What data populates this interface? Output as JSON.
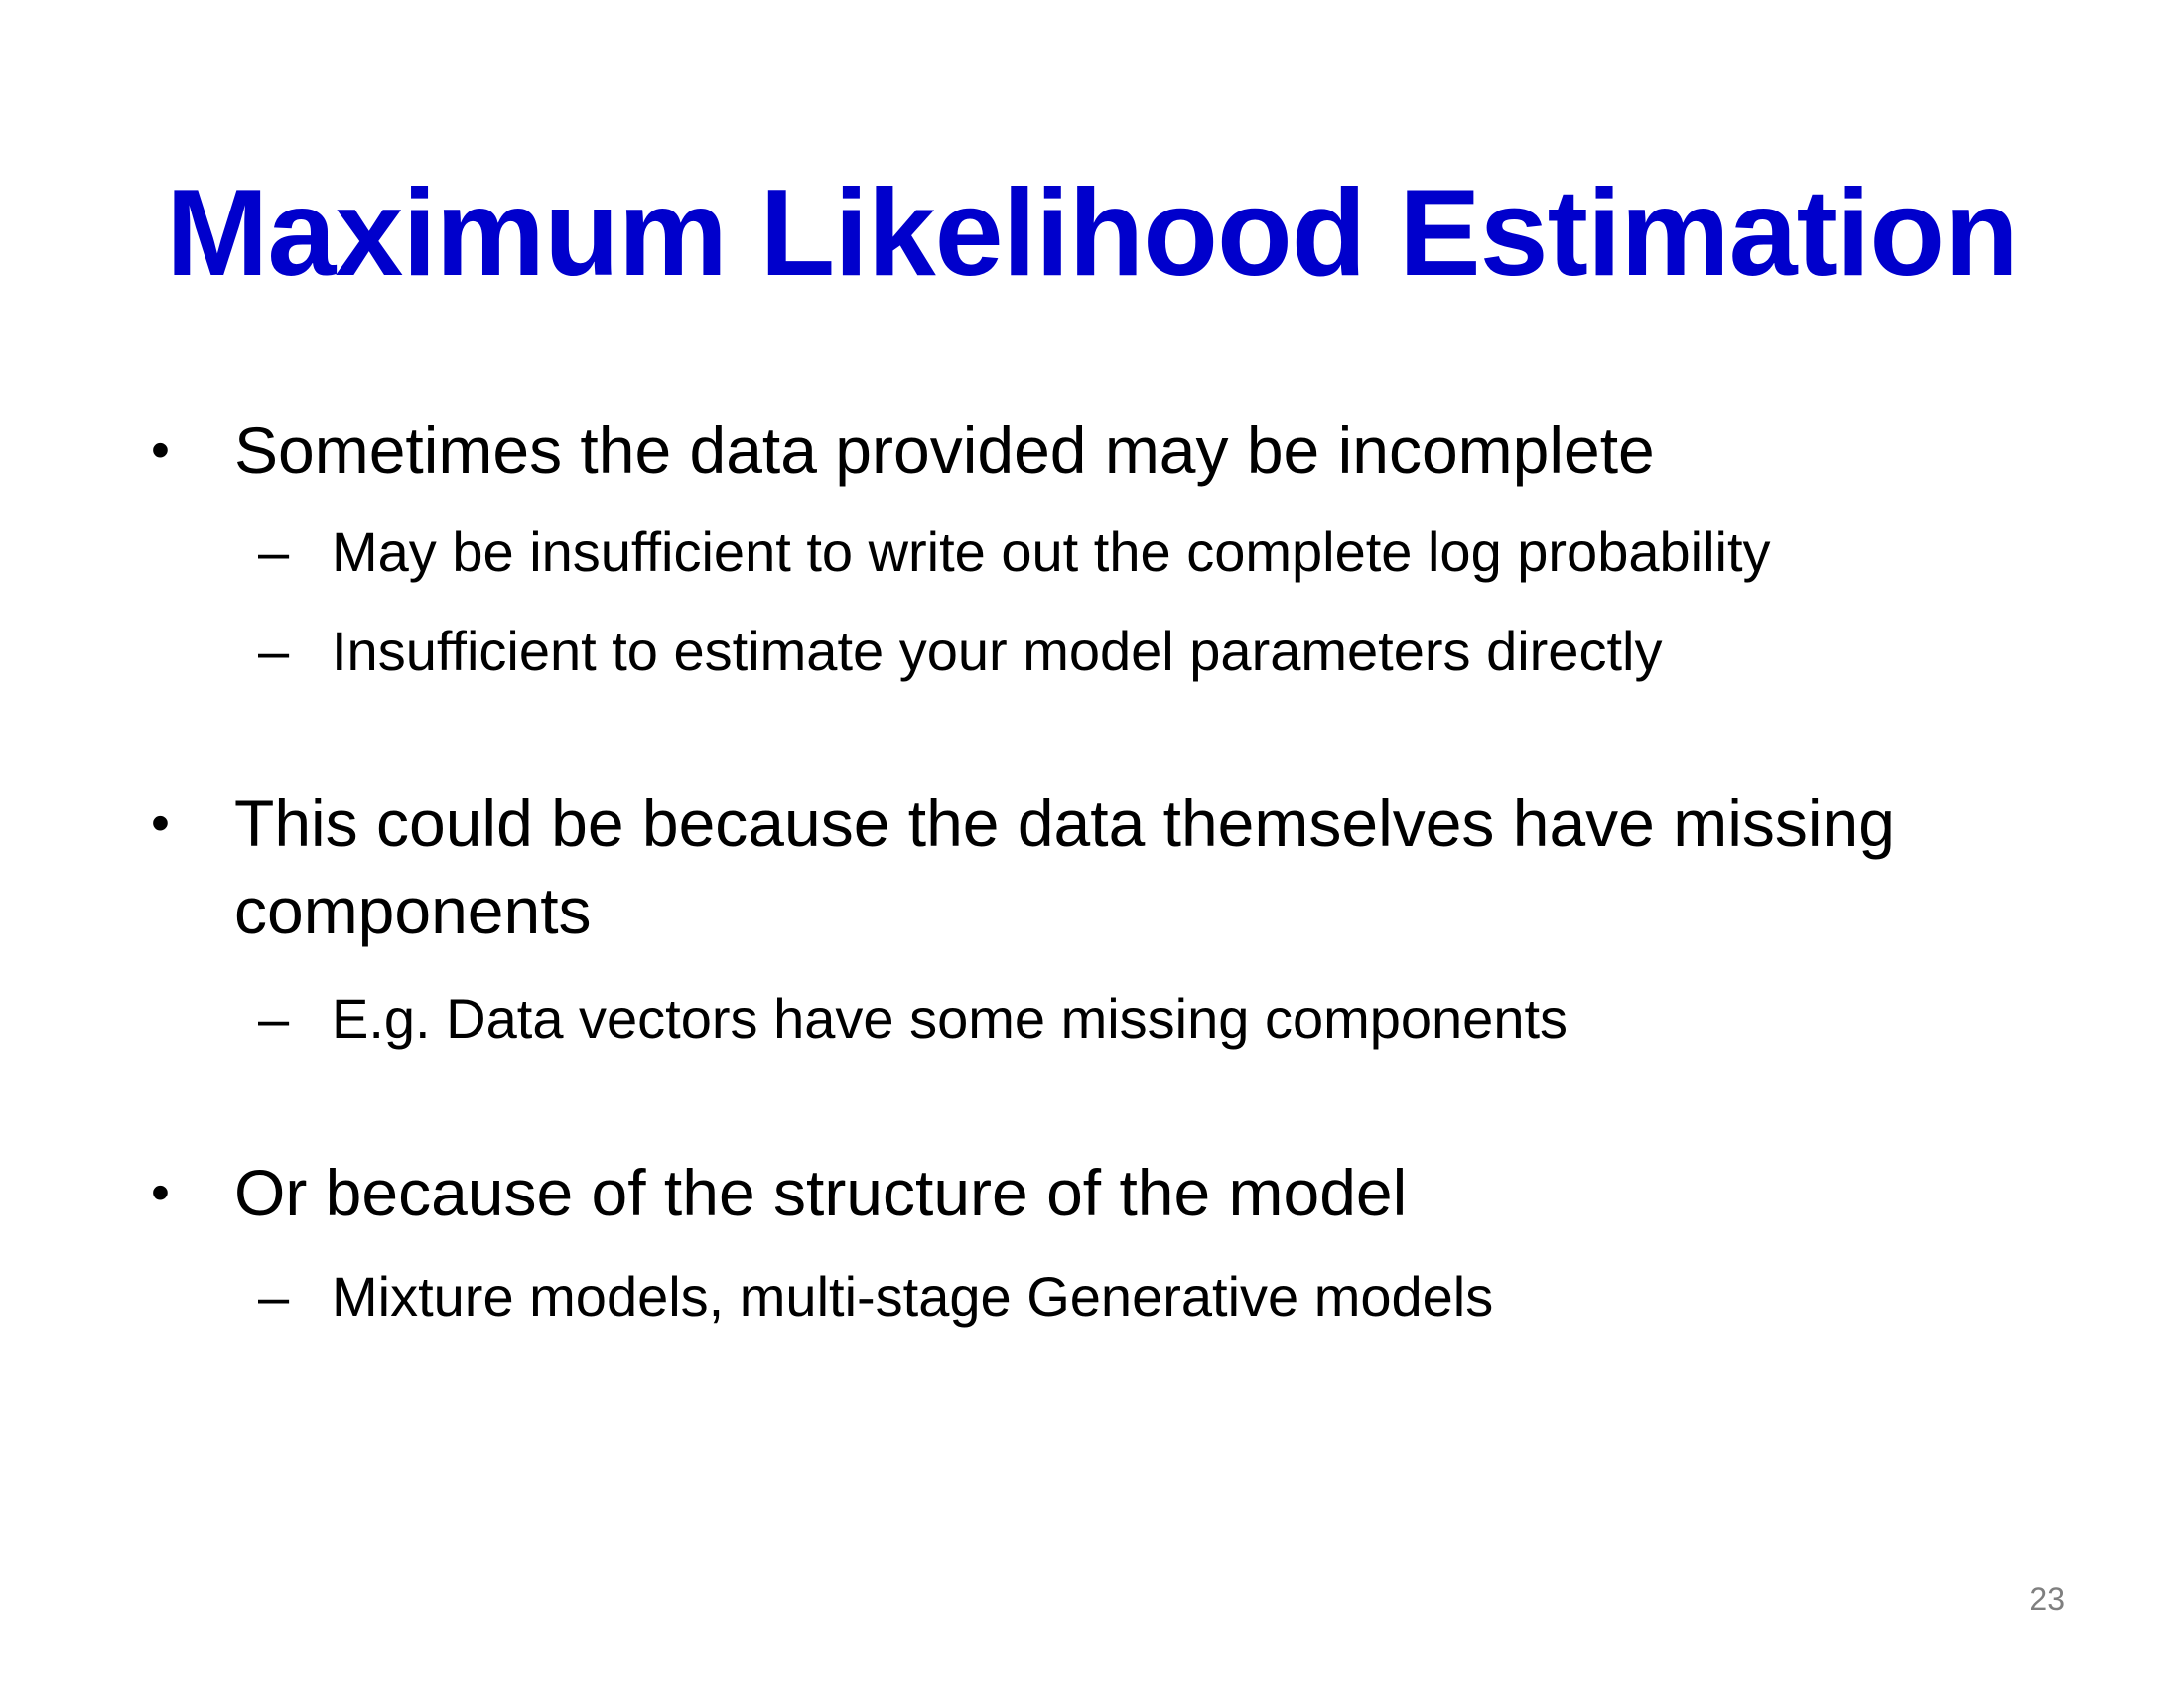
{
  "slide": {
    "title": "Maximum Likelihood Estimation",
    "bullets": [
      {
        "text": "Sometimes the data provided may be incomplete",
        "subs": [
          "May be insufficient to write out the complete log probability",
          "Insufficient to estimate your model parameters directly"
        ]
      },
      {
        "text_line1": "This could be because the data themselves have missing",
        "text_line2": "components",
        "subs": [
          "E.g. Data vectors have some missing components"
        ]
      },
      {
        "text": "Or because of the structure of the model",
        "subs": [
          "Mixture models,  multi-stage Generative models"
        ]
      }
    ],
    "bullet_glyph": "•",
    "sub_glyph": "–",
    "page_number": "23",
    "colors": {
      "title": "#0000cc",
      "body": "#000000",
      "page_number": "#7f7f7f"
    }
  }
}
